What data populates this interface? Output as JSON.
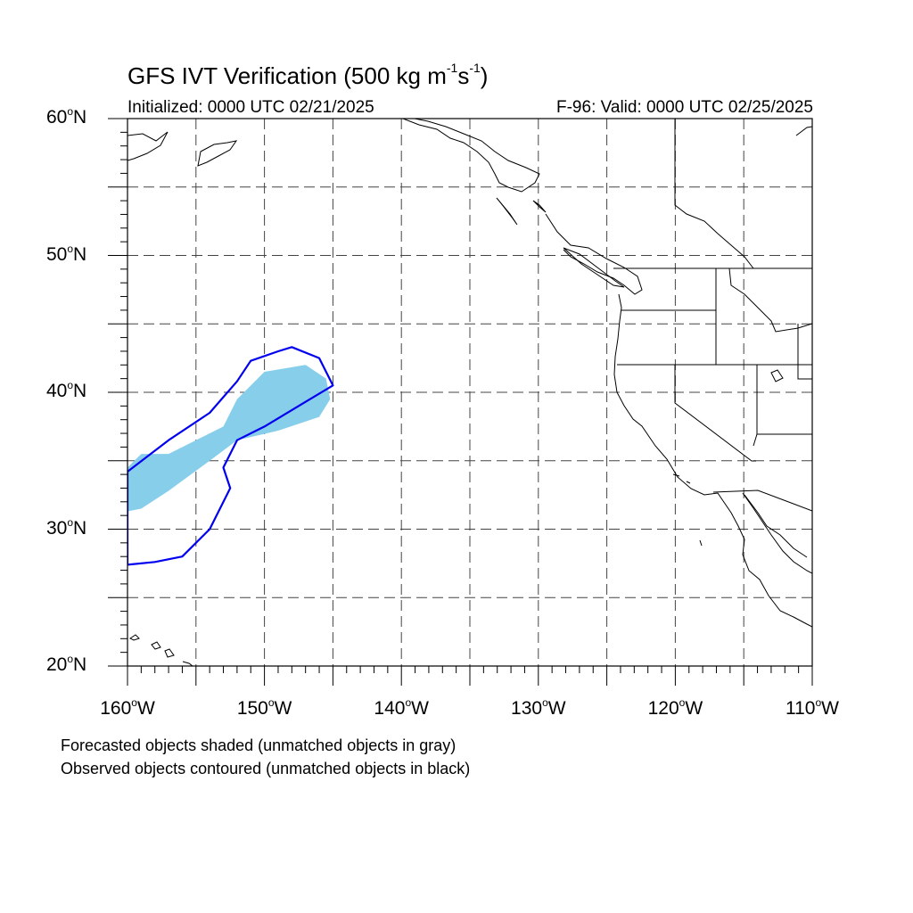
{
  "title": {
    "main": "GFS IVT Verification (500 kg m",
    "sup1": "-1",
    "mid": "s",
    "sup2": "-1",
    "end": ")"
  },
  "initialized": "Initialized: 0000 UTC 02/21/2025",
  "valid": "F-96: Valid: 0000 UTC 02/25/2025",
  "lat_labels": [
    "60",
    "50",
    "40",
    "30",
    "20"
  ],
  "lat_suffix": "N",
  "lon_labels": [
    "160",
    "150",
    "140",
    "130",
    "120",
    "110"
  ],
  "lon_suffix": "W",
  "degree_symbol": "o",
  "notes": {
    "shaded": "Forecasted objects shaded (unmatched objects in gray)",
    "contoured": "Observed objects contoured (unmatched objects in black)"
  },
  "colors": {
    "forecast_fill": "#87ceeb",
    "observed_contour": "#0000ee",
    "coast": "#000000",
    "grid": "#444444"
  },
  "map_extent": {
    "lon_min": -160,
    "lon_max": -110,
    "lat_min": 20,
    "lat_max": 60
  },
  "forecast_object": {
    "name": "forecast-ivt-object",
    "polygon": [
      [
        -160,
        34.5
      ],
      [
        -159,
        35.5
      ],
      [
        -157,
        35.5
      ],
      [
        -155,
        36.5
      ],
      [
        -153,
        37.5
      ],
      [
        -152,
        39.5
      ],
      [
        -150,
        41.5
      ],
      [
        -147,
        42
      ],
      [
        -145.5,
        41
      ],
      [
        -145.2,
        39.5
      ],
      [
        -146,
        38.2
      ],
      [
        -149,
        37.2
      ],
      [
        -152,
        36.5
      ],
      [
        -154,
        35
      ],
      [
        -157,
        32.8
      ],
      [
        -159,
        31.5
      ],
      [
        -160,
        31.3
      ]
    ]
  },
  "observed_object": {
    "name": "observed-ivt-object",
    "polygon": [
      [
        -160,
        34.2
      ],
      [
        -157,
        36.5
      ],
      [
        -154,
        38.5
      ],
      [
        -152,
        40.8
      ],
      [
        -151,
        42.3
      ],
      [
        -149,
        43
      ],
      [
        -148,
        43.3
      ],
      [
        -146,
        42.5
      ],
      [
        -145,
        40.5
      ],
      [
        -147,
        39.3
      ],
      [
        -150,
        37.5
      ],
      [
        -152,
        36.5
      ],
      [
        -153,
        34.5
      ],
      [
        -152.5,
        33
      ],
      [
        -154,
        30
      ],
      [
        -156,
        28
      ],
      [
        -158,
        27.6
      ],
      [
        -160,
        27.4
      ]
    ]
  }
}
